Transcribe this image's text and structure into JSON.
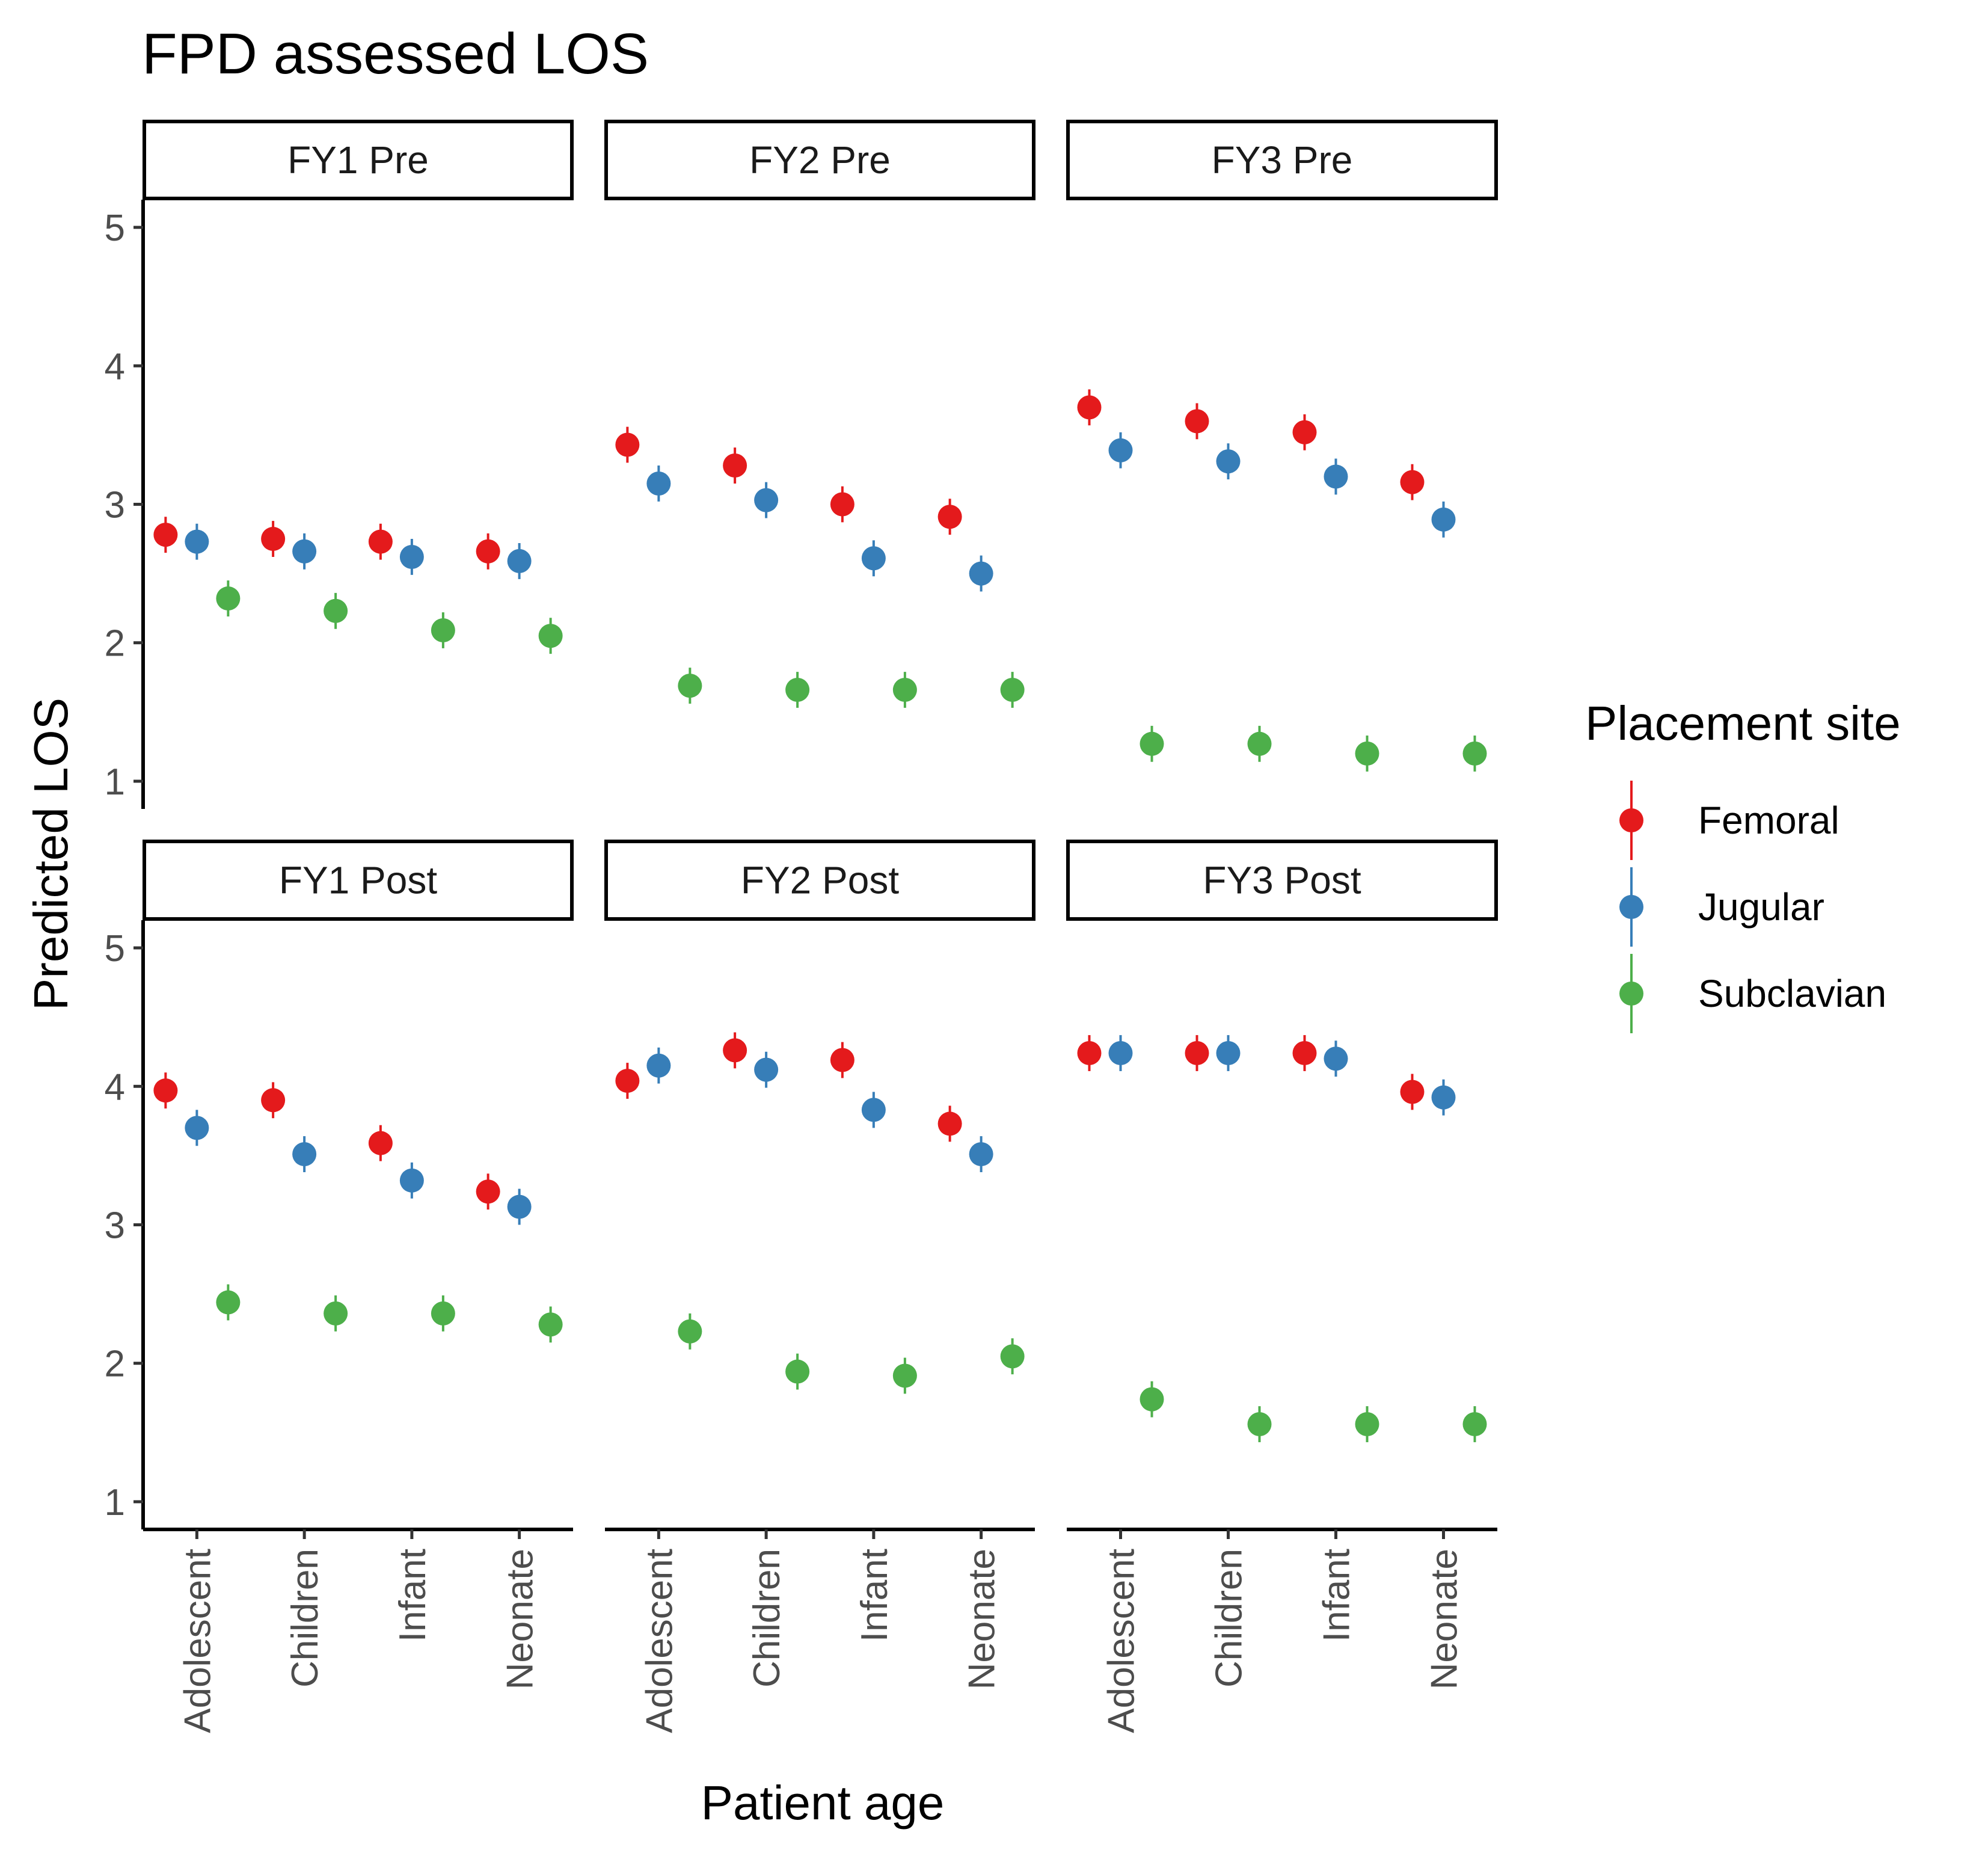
{
  "chart_data": {
    "type": "scatter",
    "title": "FPD assessed LOS",
    "xlabel": "Patient age",
    "ylabel": "Predicted LOS",
    "ylim": [
      0.8,
      5.2
    ],
    "yticks": [
      1,
      2,
      3,
      4,
      5
    ],
    "categories": [
      "Adolescent",
      "Children",
      "Infant",
      "Neonate"
    ],
    "grid": false,
    "legend": {
      "title": "Placement site",
      "position": "right",
      "entries": [
        "Femoral",
        "Jugular",
        "Subclavian"
      ]
    },
    "colors": {
      "Femoral": "#e41a1c",
      "Jugular": "#377eb8",
      "Subclavian": "#4daf4a"
    },
    "error_bar_halfwidth": 0.13,
    "facets": [
      {
        "label": "FY1 Pre",
        "series": [
          {
            "name": "Femoral",
            "values": [
              2.78,
              2.75,
              2.73,
              2.66
            ]
          },
          {
            "name": "Jugular",
            "values": [
              2.73,
              2.66,
              2.62,
              2.59
            ]
          },
          {
            "name": "Subclavian",
            "values": [
              2.32,
              2.23,
              2.09,
              2.05
            ]
          }
        ]
      },
      {
        "label": "FY2 Pre",
        "series": [
          {
            "name": "Femoral",
            "values": [
              3.43,
              3.28,
              3.0,
              2.91
            ]
          },
          {
            "name": "Jugular",
            "values": [
              3.15,
              3.03,
              2.61,
              2.5
            ]
          },
          {
            "name": "Subclavian",
            "values": [
              1.69,
              1.66,
              1.66,
              1.66
            ]
          }
        ]
      },
      {
        "label": "FY3 Pre",
        "series": [
          {
            "name": "Femoral",
            "values": [
              3.7,
              3.6,
              3.52,
              3.16
            ]
          },
          {
            "name": "Jugular",
            "values": [
              3.39,
              3.31,
              3.2,
              2.89
            ]
          },
          {
            "name": "Subclavian",
            "values": [
              1.27,
              1.27,
              1.2,
              1.2
            ]
          }
        ]
      },
      {
        "label": "FY1 Post",
        "series": [
          {
            "name": "Femoral",
            "values": [
              3.97,
              3.9,
              3.59,
              3.24
            ]
          },
          {
            "name": "Jugular",
            "values": [
              3.7,
              3.51,
              3.32,
              3.13
            ]
          },
          {
            "name": "Subclavian",
            "values": [
              2.44,
              2.36,
              2.36,
              2.28
            ]
          }
        ]
      },
      {
        "label": "FY2 Post",
        "series": [
          {
            "name": "Femoral",
            "values": [
              4.04,
              4.26,
              4.19,
              3.73
            ]
          },
          {
            "name": "Jugular",
            "values": [
              4.15,
              4.12,
              3.83,
              3.51
            ]
          },
          {
            "name": "Subclavian",
            "values": [
              2.23,
              1.94,
              1.91,
              2.05
            ]
          }
        ]
      },
      {
        "label": "FY3 Post",
        "series": [
          {
            "name": "Femoral",
            "values": [
              4.24,
              4.24,
              4.24,
              3.96
            ]
          },
          {
            "name": "Jugular",
            "values": [
              4.24,
              4.24,
              4.2,
              3.92
            ]
          },
          {
            "name": "Subclavian",
            "values": [
              1.74,
              1.56,
              1.56,
              1.56
            ]
          }
        ]
      }
    ]
  }
}
